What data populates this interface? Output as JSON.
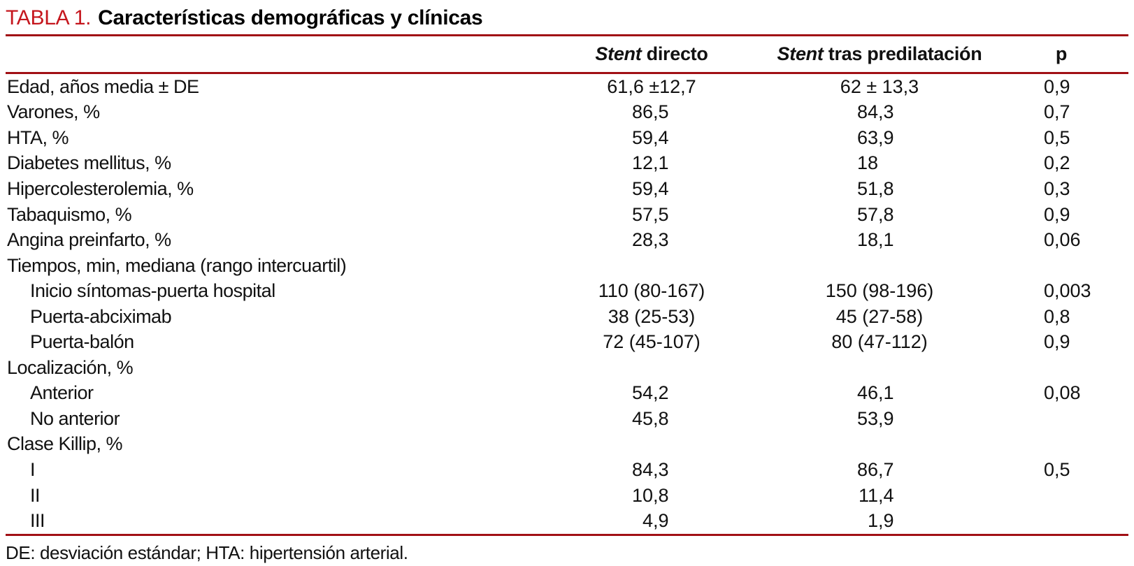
{
  "page": {
    "title_label": "TABLA 1.",
    "title_text": "Características demográficas y clínicas",
    "footnote": "DE: desviación estándar; HTA: hipertensión arterial."
  },
  "colors": {
    "title_accent": "#c5171e",
    "rule_red": "#a11015",
    "text": "#111111",
    "background": "#ffffff"
  },
  "table": {
    "header": {
      "col1_italic": "Stent",
      "col1_rest": " directo",
      "col2_italic": "Stent",
      "col2_rest": " tras predilatación",
      "col3": "p"
    },
    "rows": [
      {
        "label": "Edad, años media ± DE",
        "indent": false,
        "c1": "61,6 ±12,7",
        "c2": "62 ± 13,3",
        "p": "0,9"
      },
      {
        "label": "Varones, %",
        "indent": false,
        "c1": "86,5",
        "c2": "84,3",
        "p": "0,7"
      },
      {
        "label": "HTA, %",
        "indent": false,
        "c1": "59,4",
        "c2": "63,9",
        "p": "0,5"
      },
      {
        "label": "Diabetes mellitus, %",
        "indent": false,
        "c1": "12,1",
        "c2": "18",
        "p": "0,2"
      },
      {
        "label": "Hipercolesterolemia, %",
        "indent": false,
        "c1": "59,4",
        "c2": "51,8",
        "p": "0,3"
      },
      {
        "label": "Tabaquismo, %",
        "indent": false,
        "c1": "57,5",
        "c2": "57,8",
        "p": "0,9"
      },
      {
        "label": "Angina preinfarto, %",
        "indent": false,
        "c1": "28,3",
        "c2": "18,1",
        "p": "0,06"
      },
      {
        "label": "Tiempos, min, mediana (rango intercuartil)",
        "indent": false,
        "c1": "",
        "c2": "",
        "p": ""
      },
      {
        "label": "Inicio síntomas-puerta hospital",
        "indent": true,
        "c1": "110 (80-167)",
        "c2": "150 (98-196)",
        "p": "0,003"
      },
      {
        "label": "Puerta-abciximab",
        "indent": true,
        "c1": "38 (25-53)",
        "c2": "45 (27-58)",
        "p": "0,8"
      },
      {
        "label": "Puerta-balón",
        "indent": true,
        "c1": "72 (45-107)",
        "c2": "80 (47-112)",
        "p": "0,9"
      },
      {
        "label": "Localización, %",
        "indent": false,
        "c1": "",
        "c2": "",
        "p": ""
      },
      {
        "label": "Anterior",
        "indent": true,
        "c1": "54,2",
        "c2": "46,1",
        "p": "0,08"
      },
      {
        "label": "No anterior",
        "indent": true,
        "c1": "45,8",
        "c2": "53,9",
        "p": ""
      },
      {
        "label": "Clase Killip, %",
        "indent": false,
        "c1": "",
        "c2": "",
        "p": ""
      },
      {
        "label": "I",
        "indent": true,
        "c1": "84,3",
        "c2": "86,7",
        "p": "0,5"
      },
      {
        "label": "II",
        "indent": true,
        "c1": "10,8",
        "c2": "11,4",
        "p": ""
      },
      {
        "label": "III",
        "indent": true,
        "c1": "4,9",
        "c2": "1,9",
        "p": ""
      }
    ]
  }
}
